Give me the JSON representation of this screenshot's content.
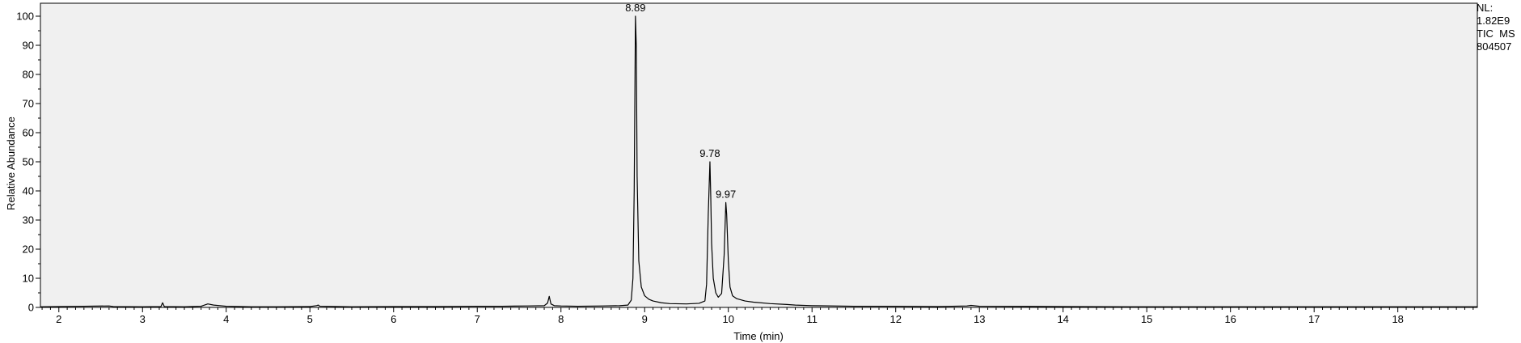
{
  "info": {
    "nl_label": "NL:",
    "nl_value": "1.82E9",
    "trace_type": "TIC  MS",
    "file_id": "804507"
  },
  "chart_data": {
    "type": "line",
    "title": "",
    "xlabel": "Time (min)",
    "ylabel": "Relative Abundance",
    "xlim": [
      1.78,
      18.95
    ],
    "ylim": [
      0,
      100
    ],
    "x_ticks": [
      2,
      3,
      4,
      5,
      6,
      7,
      8,
      9,
      10,
      11,
      12,
      13,
      14,
      15,
      16,
      17,
      18
    ],
    "y_ticks": [
      0,
      10,
      20,
      30,
      40,
      50,
      60,
      70,
      80,
      90,
      100
    ],
    "grid": false,
    "legend": "none",
    "colors": {
      "plot_background": "#f0f0f0",
      "line": "#000000",
      "axis": "#000000"
    },
    "peak_labels": [
      {
        "text": "8.89",
        "x": 8.89,
        "y": 100
      },
      {
        "text": "9.78",
        "x": 9.78,
        "y": 50
      },
      {
        "text": "9.97",
        "x": 9.97,
        "y": 36
      }
    ],
    "series": [
      {
        "x": [
          1.78,
          2.0,
          2.3,
          2.6,
          2.65,
          3.0,
          3.22,
          3.24,
          3.26,
          3.5,
          3.7,
          3.78,
          3.85,
          4.0,
          4.3,
          4.6,
          5.0,
          5.08,
          5.1,
          5.12,
          5.5,
          6.0,
          6.5,
          7.0,
          7.3,
          7.6,
          7.8,
          7.84,
          7.86,
          7.88,
          7.92,
          8.0,
          8.2,
          8.5,
          8.7,
          8.8,
          8.84,
          8.86,
          8.875,
          8.89,
          8.9,
          8.91,
          8.93,
          8.96,
          9.0,
          9.05,
          9.1,
          9.2,
          9.3,
          9.5,
          9.65,
          9.72,
          9.74,
          9.76,
          9.78,
          9.79,
          9.8,
          9.82,
          9.85,
          9.88,
          9.92,
          9.95,
          9.97,
          9.98,
          10.0,
          10.02,
          10.05,
          10.1,
          10.2,
          10.3,
          10.5,
          10.7,
          10.8,
          11.0,
          11.5,
          12.0,
          12.5,
          12.85,
          12.9,
          13.0,
          14.0,
          15.0,
          16.0,
          17.0,
          18.0,
          18.95
        ],
        "y": [
          0.2,
          0.3,
          0.4,
          0.5,
          0.3,
          0.2,
          0.3,
          1.6,
          0.3,
          0.2,
          0.4,
          1.2,
          0.8,
          0.4,
          0.2,
          0.2,
          0.3,
          0.6,
          0.8,
          0.4,
          0.2,
          0.3,
          0.3,
          0.4,
          0.4,
          0.5,
          0.6,
          1.5,
          3.8,
          1.2,
          0.6,
          0.5,
          0.4,
          0.5,
          0.6,
          0.8,
          2.5,
          10,
          40,
          100,
          90,
          45,
          16,
          7,
          4,
          2.8,
          2.2,
          1.6,
          1.3,
          1.2,
          1.4,
          2.2,
          8,
          32,
          50,
          38,
          22,
          10,
          5,
          3.5,
          4.8,
          18,
          36,
          32,
          16,
          7,
          4,
          3,
          2.2,
          1.8,
          1.3,
          1.0,
          0.8,
          0.6,
          0.4,
          0.4,
          0.3,
          0.5,
          0.7,
          0.4,
          0.3,
          0.2,
          0.2,
          0.2,
          0.2,
          0.2
        ]
      }
    ]
  }
}
